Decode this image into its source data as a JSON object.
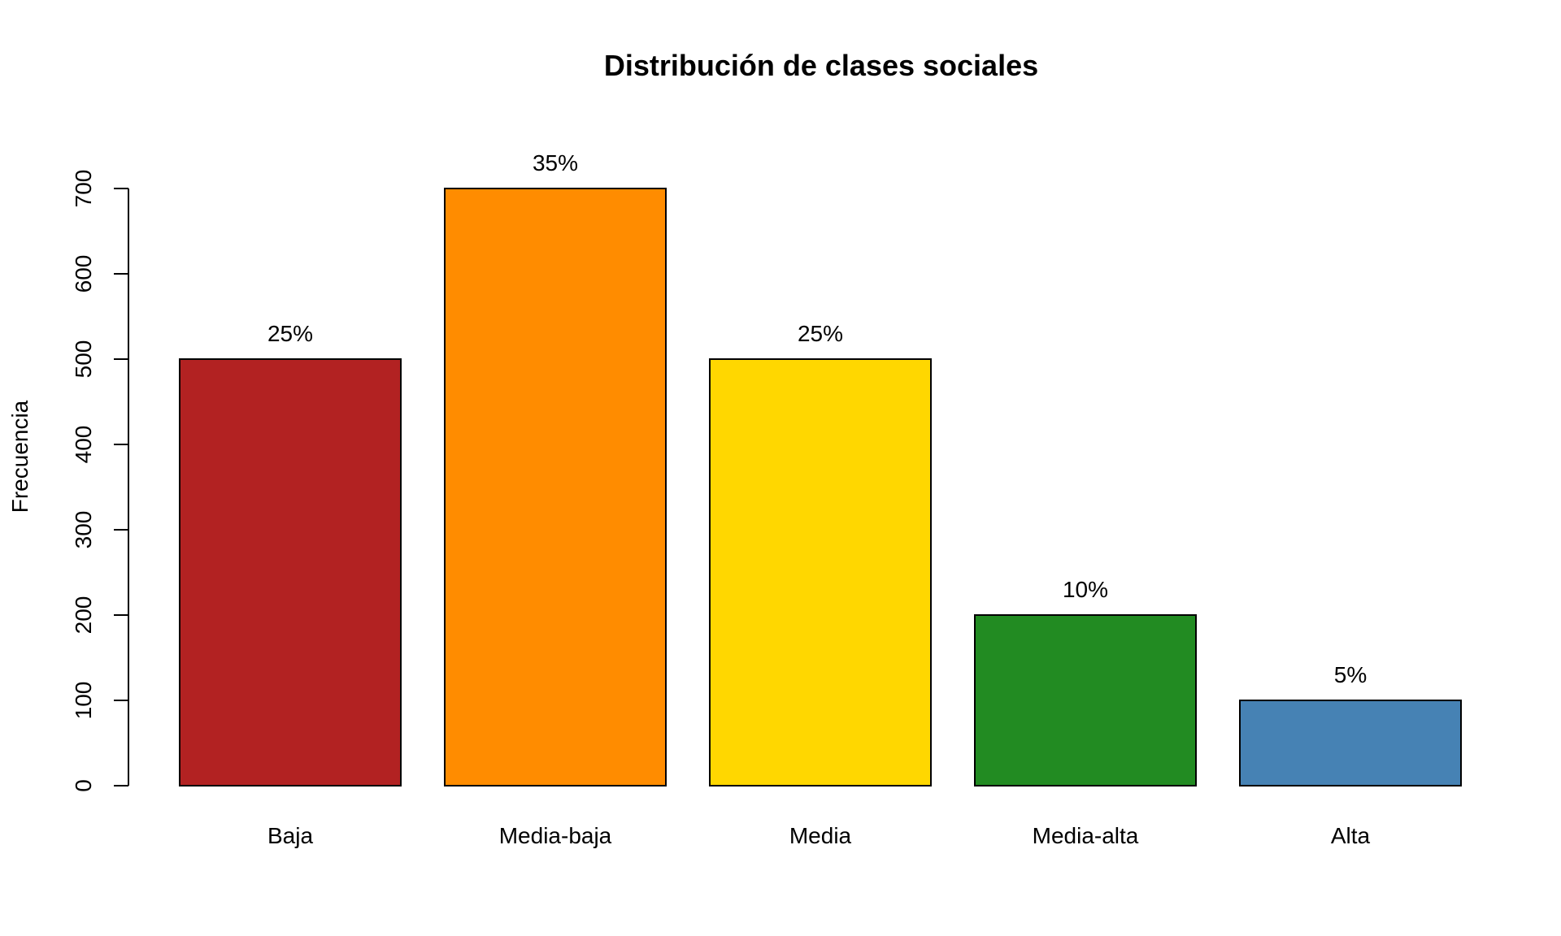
{
  "chart_data": {
    "type": "bar",
    "title": "Distribución de clases sociales",
    "xlabel": "",
    "ylabel": "Frecuencia",
    "categories": [
      "Baja",
      "Media-baja",
      "Media",
      "Media-alta",
      "Alta"
    ],
    "values": [
      500,
      700,
      500,
      200,
      100
    ],
    "data_labels": [
      "25%",
      "35%",
      "25%",
      "10%",
      "5%"
    ],
    "colors": [
      "#B22222",
      "#FF8C00",
      "#FFD700",
      "#228B22",
      "#4682B4"
    ],
    "yticks": [
      0,
      100,
      200,
      300,
      400,
      500,
      600,
      700
    ],
    "ytick_labels": [
      "0",
      "100",
      "200",
      "300",
      "400",
      "500",
      "600",
      "700"
    ],
    "ylim": [
      0,
      700
    ],
    "grid": false,
    "legend": "none"
  }
}
